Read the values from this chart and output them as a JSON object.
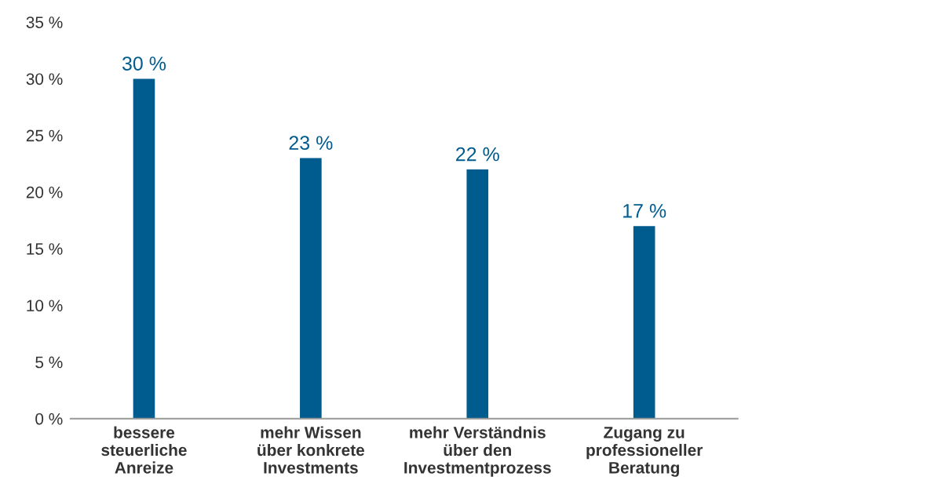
{
  "chart_data": {
    "type": "bar",
    "categories": [
      "bessere\nsteuerliche\nAnreize",
      "mehr Wissen\nüber konkrete\nInvestments",
      "mehr Verständnis\nüber den\nInvestmentprozess",
      "Zugang zu\nprofessioneller\nBeratung"
    ],
    "values": [
      30,
      23,
      22,
      17
    ],
    "value_labels": [
      "30 %",
      "23 %",
      "22 %",
      "17 %"
    ],
    "color": "#005b8e",
    "ylim": [
      0,
      35
    ],
    "yticks": [
      {
        "value": 0,
        "label": "0 %"
      },
      {
        "value": 5,
        "label": "5 %"
      },
      {
        "value": 10,
        "label": "10 %"
      },
      {
        "value": 15,
        "label": "15 %"
      },
      {
        "value": 20,
        "label": "20 %"
      },
      {
        "value": 25,
        "label": "25 %"
      },
      {
        "value": 30,
        "label": "30 %"
      },
      {
        "value": 35,
        "label": "35 %"
      }
    ],
    "grid": false,
    "legend": false
  }
}
